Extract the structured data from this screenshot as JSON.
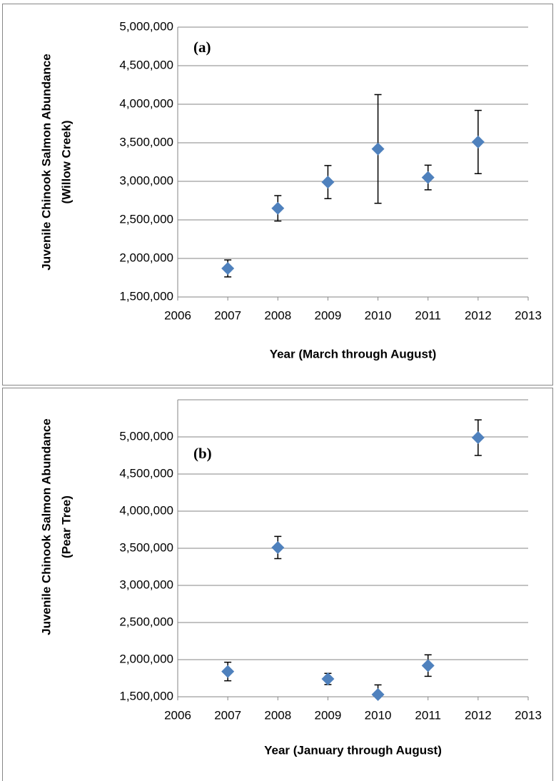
{
  "chart_data": [
    {
      "type": "scatter",
      "annotation": "(a)",
      "xlabel": "Year (March through August)",
      "ylabel": [
        "Juvenile Chinook Salmon Abundance",
        "(Willow Creek)"
      ],
      "x": [
        2007,
        2008,
        2009,
        2010,
        2011,
        2012
      ],
      "values": [
        1870000,
        2650000,
        2990000,
        3420000,
        3050000,
        3510000
      ],
      "errors": [
        110000,
        165000,
        215000,
        705000,
        160000,
        410000
      ],
      "color": "#4f81bd",
      "xlim": [
        2006,
        2013
      ],
      "xticks": [
        2006,
        2007,
        2008,
        2009,
        2010,
        2011,
        2012,
        2013
      ],
      "ylim": [
        1500000,
        5000000
      ],
      "yticks": [
        {
          "value": 1500000,
          "label": "1,500,000"
        },
        {
          "value": 2000000,
          "label": "2,000,000"
        },
        {
          "value": 2500000,
          "label": "2,500,000"
        },
        {
          "value": 3000000,
          "label": "3,000,000"
        },
        {
          "value": 3500000,
          "label": "3,500,000"
        },
        {
          "value": 4000000,
          "label": "4,000,000"
        },
        {
          "value": 4500000,
          "label": "4,500,000"
        },
        {
          "value": 5000000,
          "label": "5,000,000"
        }
      ],
      "grid": true
    },
    {
      "type": "scatter",
      "annotation": "(b)",
      "xlabel": "Year (January through August)",
      "ylabel": [
        "Juvenile Chinook Salmon Abundance",
        "(Pear Tree)"
      ],
      "x": [
        2007,
        2008,
        2009,
        2010,
        2011,
        2012
      ],
      "values": [
        1840000,
        3510000,
        1740000,
        1530000,
        1920000,
        4990000
      ],
      "errors": [
        125000,
        150000,
        75000,
        130000,
        145000,
        240000
      ],
      "color": "#4f81bd",
      "xlim": [
        2006,
        2013
      ],
      "xticks": [
        2006,
        2007,
        2008,
        2009,
        2010,
        2011,
        2012,
        2013
      ],
      "ylim": [
        1500000,
        5500000
      ],
      "yticks": [
        {
          "value": 1500000,
          "label": "1,500,000"
        },
        {
          "value": 2000000,
          "label": "2,000,000"
        },
        {
          "value": 2500000,
          "label": "2,500,000"
        },
        {
          "value": 3000000,
          "label": "3,000,000"
        },
        {
          "value": 3500000,
          "label": "3,500,000"
        },
        {
          "value": 4000000,
          "label": "4,000,000"
        },
        {
          "value": 4500000,
          "label": "4,500,000"
        },
        {
          "value": 5000000,
          "label": "5,000,000"
        }
      ],
      "grid": true
    }
  ]
}
